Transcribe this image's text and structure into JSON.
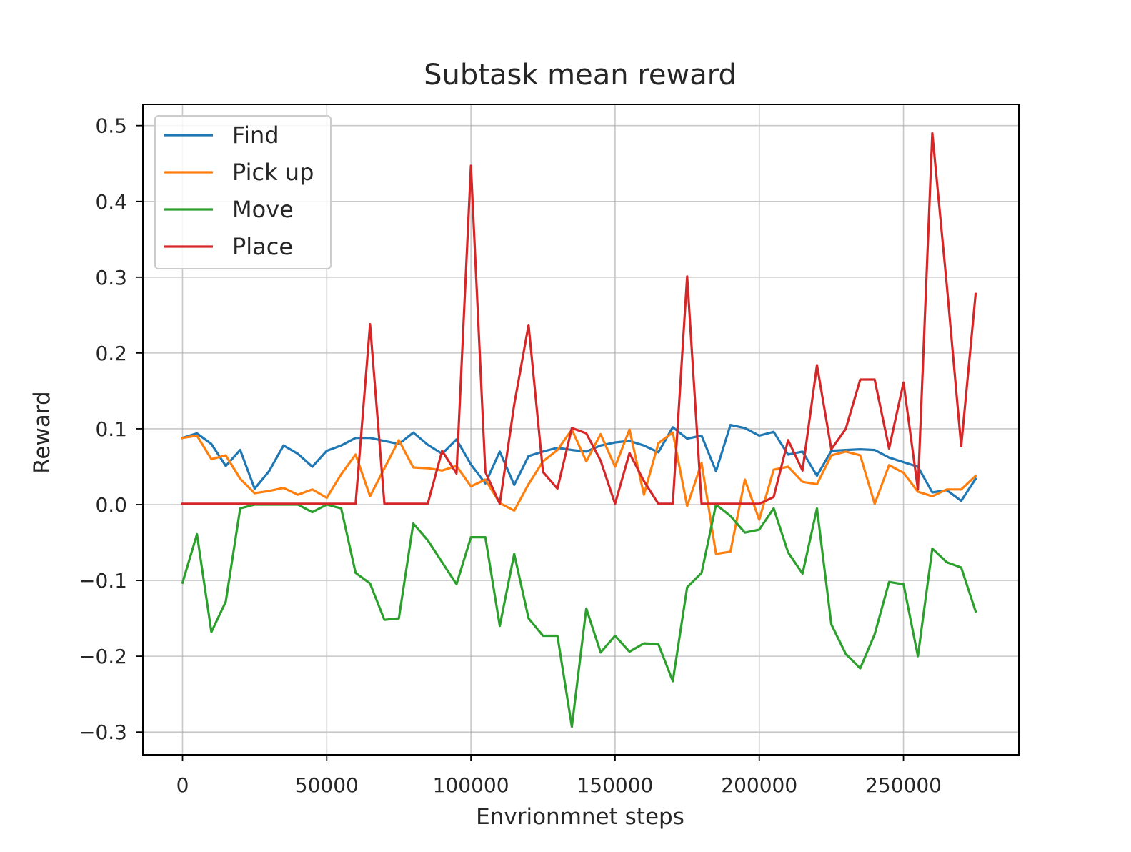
{
  "chart_data": {
    "type": "line",
    "title": "Subtask mean reward",
    "xlabel": "Envrionmnet steps",
    "ylabel": "Reward",
    "xlim": [
      -13750,
      290000
    ],
    "ylim": [
      -0.33,
      0.528
    ],
    "xticks": [
      0,
      50000,
      100000,
      150000,
      200000,
      250000
    ],
    "xtick_labels": [
      "0",
      "50000",
      "100000",
      "150000",
      "200000",
      "250000"
    ],
    "yticks": [
      -0.3,
      -0.2,
      -0.1,
      0.0,
      0.1,
      0.2,
      0.3,
      0.4,
      0.5
    ],
    "ytick_labels": [
      "−0.3",
      "−0.2",
      "−0.1",
      "0.0",
      "0.1",
      "0.2",
      "0.3",
      "0.4",
      "0.5"
    ],
    "grid": true,
    "legend_position": "top-left",
    "x": [
      0,
      5000,
      10000,
      15000,
      20000,
      25000,
      30000,
      35000,
      40000,
      45000,
      50000,
      55000,
      60000,
      65000,
      70000,
      75000,
      80000,
      85000,
      90000,
      95000,
      100000,
      105000,
      110000,
      115000,
      120000,
      125000,
      130000,
      135000,
      140000,
      145000,
      150000,
      155000,
      160000,
      165000,
      170000,
      175000,
      180000,
      185000,
      190000,
      195000,
      200000,
      205000,
      210000,
      215000,
      220000,
      225000,
      230000,
      235000,
      240000,
      245000,
      250000,
      255000,
      260000,
      265000,
      270000,
      275000
    ],
    "series": [
      {
        "name": "Find",
        "color": "#1f77b4",
        "values": [
          0.088,
          0.094,
          0.08,
          0.051,
          0.072,
          0.021,
          0.044,
          0.078,
          0.067,
          0.05,
          0.071,
          0.078,
          0.088,
          0.088,
          0.084,
          0.08,
          0.095,
          0.079,
          0.067,
          0.086,
          0.053,
          0.028,
          0.07,
          0.026,
          0.064,
          0.07,
          0.075,
          0.072,
          0.07,
          0.078,
          0.082,
          0.084,
          0.078,
          0.069,
          0.102,
          0.087,
          0.091,
          0.044,
          0.105,
          0.101,
          0.091,
          0.096,
          0.066,
          0.07,
          0.038,
          0.071,
          0.072,
          0.073,
          0.072,
          0.062,
          0.056,
          0.05,
          0.016,
          0.019,
          0.005,
          0.034
        ]
      },
      {
        "name": "Pick up",
        "color": "#ff7f0e",
        "values": [
          0.088,
          0.091,
          0.06,
          0.065,
          0.034,
          0.015,
          0.018,
          0.022,
          0.013,
          0.02,
          0.009,
          0.04,
          0.066,
          0.011,
          0.048,
          0.085,
          0.049,
          0.048,
          0.045,
          0.051,
          0.024,
          0.033,
          0.002,
          -0.008,
          0.027,
          0.057,
          0.072,
          0.099,
          0.057,
          0.093,
          0.05,
          0.099,
          0.013,
          0.081,
          0.095,
          -0.002,
          0.055,
          -0.065,
          -0.062,
          0.033,
          -0.02,
          0.046,
          0.05,
          0.03,
          0.027,
          0.065,
          0.07,
          0.065,
          0.001,
          0.052,
          0.042,
          0.017,
          0.011,
          0.02,
          0.02,
          0.038
        ]
      },
      {
        "name": "Move",
        "color": "#2ca02c",
        "values": [
          -0.103,
          -0.039,
          -0.168,
          -0.128,
          -0.005,
          0.0,
          0.0,
          0.0,
          0.0,
          -0.01,
          0.0,
          -0.005,
          -0.09,
          -0.104,
          -0.152,
          -0.15,
          -0.025,
          -0.047,
          -0.076,
          -0.105,
          -0.043,
          -0.043,
          -0.16,
          -0.065,
          -0.15,
          -0.173,
          -0.173,
          -0.293,
          -0.137,
          -0.195,
          -0.173,
          -0.194,
          -0.183,
          -0.184,
          -0.233,
          -0.109,
          -0.09,
          0.0,
          -0.015,
          -0.037,
          -0.033,
          -0.005,
          -0.063,
          -0.091,
          -0.005,
          -0.158,
          -0.197,
          -0.216,
          -0.171,
          -0.102,
          -0.105,
          -0.2,
          -0.058,
          -0.076,
          -0.083,
          -0.141
        ]
      },
      {
        "name": "Place",
        "color": "#d62728",
        "values": [
          0.001,
          0.001,
          0.001,
          0.001,
          0.001,
          0.001,
          0.001,
          0.001,
          0.001,
          0.001,
          0.001,
          0.001,
          0.001,
          0.238,
          0.001,
          0.001,
          0.001,
          0.001,
          0.071,
          0.041,
          0.447,
          0.043,
          0.001,
          0.132,
          0.237,
          0.043,
          0.021,
          0.101,
          0.094,
          0.058,
          0.001,
          0.068,
          0.031,
          0.001,
          0.001,
          0.301,
          0.001,
          0.001,
          0.001,
          0.001,
          0.001,
          0.01,
          0.085,
          0.045,
          0.184,
          0.073,
          0.1,
          0.165,
          0.165,
          0.074,
          0.161,
          0.02,
          0.49,
          0.29,
          0.077,
          0.278
        ]
      }
    ]
  }
}
